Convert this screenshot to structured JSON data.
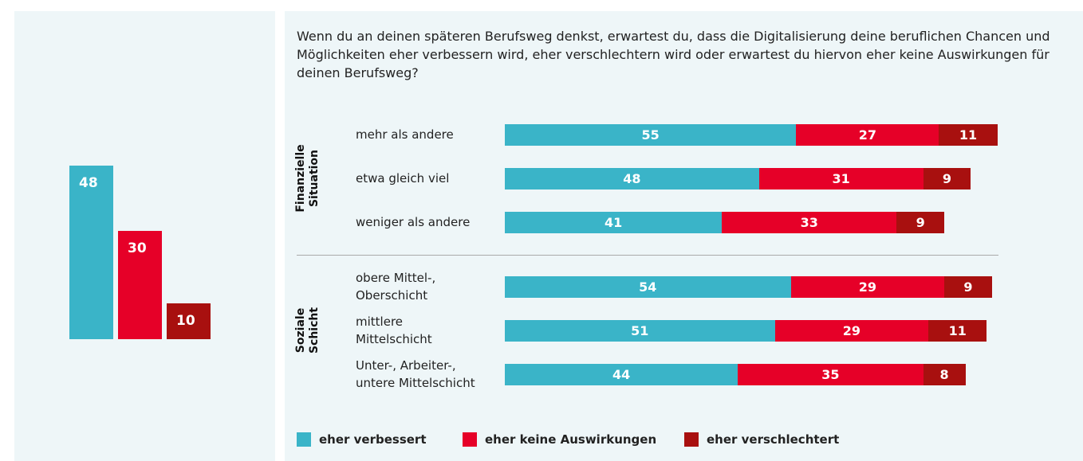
{
  "chart_data": [
    {
      "type": "bar",
      "categories": [
        null,
        null,
        null
      ],
      "values": [
        48,
        30,
        10
      ],
      "colors": [
        "#3ab4c8",
        "#e60028",
        "#a8100f"
      ]
    },
    {
      "type": "stacked-bar",
      "orientation": "horizontal",
      "title": "Wenn du an deinen späteren Berufsweg denkst, erwartest du, dass die Digitalisierung deine beruflichen Chancen und Möglichkeiten eher verbessern wird, eher verschlechtern wird oder erwartest du hiervon eher keine Auswirkungen für deinen Berufsweg?",
      "groups": [
        {
          "name": "Finanzielle\nSituation",
          "categories": [
            "mehr als andere",
            "etwa gleich viel",
            "weniger als andere"
          ]
        },
        {
          "name": "Soziale\nSchicht",
          "categories": [
            "obere Mittel-,\nOberschicht",
            "mittlere\nMittelschicht",
            "Unter-, Arbeiter-,\nuntere Mittelschicht"
          ]
        }
      ],
      "series": [
        {
          "name": "eher verbessert",
          "color": "#3ab4c8",
          "values": [
            55,
            48,
            41,
            54,
            51,
            44
          ]
        },
        {
          "name": "eher keine Auswirkungen",
          "color": "#e60028",
          "values": [
            27,
            31,
            33,
            29,
            29,
            35
          ]
        },
        {
          "name": "eher verschlechtert",
          "color": "#a8100f",
          "values": [
            11,
            9,
            9,
            9,
            11,
            8
          ]
        }
      ]
    }
  ]
}
